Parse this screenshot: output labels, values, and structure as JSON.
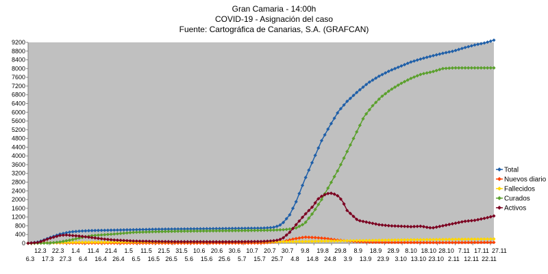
{
  "chart_data": {
    "type": "line",
    "title": "Gran Camaria - 14:00h",
    "subtitle": "COVID-19 - Asignación del caso",
    "source": "Fuente: Cartográfica de Canarias, S.A. (GRAFCAN)",
    "xlabel": "",
    "ylabel": "",
    "ylim": [
      0,
      9200
    ],
    "yticks": [
      0,
      400,
      800,
      1200,
      1600,
      2000,
      2400,
      2800,
      3200,
      3600,
      4000,
      4400,
      4800,
      5200,
      5600,
      6000,
      6400,
      6800,
      7200,
      7600,
      8000,
      8400,
      8800,
      9200
    ],
    "xtick_labels_upper": [
      "12.3",
      "22.3",
      "1.4",
      "11.4",
      "21.4",
      "1.5",
      "11.5",
      "21.5",
      "31.5",
      "10.6",
      "20.6",
      "30.6",
      "10.7",
      "20.7",
      "30.7",
      "9.8",
      "19.8",
      "29.8",
      "8.9",
      "18.9",
      "28.9",
      "8.10",
      "18.10",
      "28.10",
      "7.11",
      "17.11",
      "27.11"
    ],
    "xtick_labels_lower": [
      "6.3",
      "17.3",
      "27.3",
      "6.4",
      "16.4",
      "26.4",
      "6.5",
      "16.5",
      "26.5",
      "5.6",
      "15.6",
      "25.6",
      "5.7",
      "15.7",
      "25.7",
      "4.8",
      "14.8",
      "24.8",
      "3.9",
      "13.9",
      "23.9",
      "3.10",
      "13.10",
      "23.10",
      "2.11",
      "12.11",
      "22.11"
    ],
    "grid": false,
    "legend_position": "right",
    "plot_background": "#c0c0c0",
    "series": [
      {
        "name": "Total",
        "color": "#1f5fa8",
        "points": [
          [
            0,
            0
          ],
          [
            5,
            60
          ],
          [
            10,
            250
          ],
          [
            15,
            420
          ],
          [
            20,
            520
          ],
          [
            25,
            560
          ],
          [
            30,
            580
          ],
          [
            40,
            600
          ],
          [
            50,
            620
          ],
          [
            60,
            640
          ],
          [
            70,
            650
          ],
          [
            80,
            660
          ],
          [
            90,
            670
          ],
          [
            100,
            680
          ],
          [
            110,
            690
          ],
          [
            115,
            720
          ],
          [
            118,
            800
          ],
          [
            120,
            950
          ],
          [
            123,
            1300
          ],
          [
            126,
            1900
          ],
          [
            130,
            2900
          ],
          [
            134,
            3800
          ],
          [
            138,
            4700
          ],
          [
            142,
            5400
          ],
          [
            146,
            6050
          ],
          [
            150,
            6500
          ],
          [
            155,
            6950
          ],
          [
            160,
            7350
          ],
          [
            165,
            7650
          ],
          [
            170,
            7900
          ],
          [
            175,
            8100
          ],
          [
            180,
            8300
          ],
          [
            185,
            8450
          ],
          [
            190,
            8580
          ],
          [
            195,
            8700
          ],
          [
            200,
            8800
          ],
          [
            205,
            8950
          ],
          [
            210,
            9080
          ],
          [
            215,
            9180
          ],
          [
            219,
            9300
          ]
        ]
      },
      {
        "name": "Nuevos diario",
        "color": "#ff4000",
        "points": [
          [
            0,
            0
          ],
          [
            10,
            20
          ],
          [
            20,
            10
          ],
          [
            40,
            5
          ],
          [
            80,
            5
          ],
          [
            110,
            10
          ],
          [
            120,
            80
          ],
          [
            125,
            200
          ],
          [
            130,
            280
          ],
          [
            135,
            260
          ],
          [
            140,
            220
          ],
          [
            145,
            150
          ],
          [
            150,
            110
          ],
          [
            155,
            70
          ],
          [
            160,
            50
          ],
          [
            170,
            40
          ],
          [
            180,
            35
          ],
          [
            190,
            30
          ],
          [
            200,
            30
          ],
          [
            210,
            35
          ],
          [
            219,
            40
          ]
        ]
      },
      {
        "name": "Fallecidos",
        "color": "#ffd700",
        "points": [
          [
            0,
            0
          ],
          [
            10,
            15
          ],
          [
            20,
            40
          ],
          [
            40,
            50
          ],
          [
            80,
            60
          ],
          [
            110,
            65
          ],
          [
            120,
            70
          ],
          [
            130,
            80
          ],
          [
            140,
            100
          ],
          [
            160,
            130
          ],
          [
            180,
            160
          ],
          [
            200,
            180
          ],
          [
            219,
            195
          ]
        ]
      },
      {
        "name": "Curados",
        "color": "#5aa02c",
        "points": [
          [
            0,
            0
          ],
          [
            10,
            10
          ],
          [
            15,
            60
          ],
          [
            20,
            150
          ],
          [
            25,
            260
          ],
          [
            30,
            350
          ],
          [
            40,
            420
          ],
          [
            50,
            500
          ],
          [
            60,
            530
          ],
          [
            70,
            550
          ],
          [
            80,
            560
          ],
          [
            90,
            570
          ],
          [
            100,
            580
          ],
          [
            110,
            590
          ],
          [
            115,
            600
          ],
          [
            120,
            620
          ],
          [
            123,
            650
          ],
          [
            126,
            700
          ],
          [
            130,
            900
          ],
          [
            134,
            1400
          ],
          [
            138,
            2000
          ],
          [
            142,
            2700
          ],
          [
            146,
            3400
          ],
          [
            150,
            4200
          ],
          [
            154,
            5000
          ],
          [
            158,
            5800
          ],
          [
            162,
            6300
          ],
          [
            166,
            6700
          ],
          [
            170,
            7000
          ],
          [
            175,
            7300
          ],
          [
            180,
            7550
          ],
          [
            185,
            7750
          ],
          [
            190,
            7850
          ],
          [
            195,
            8000
          ],
          [
            200,
            8030
          ],
          [
            205,
            8030
          ],
          [
            210,
            8030
          ],
          [
            215,
            8030
          ],
          [
            219,
            8030
          ]
        ]
      },
      {
        "name": "Activos",
        "color": "#7b0020",
        "points": [
          [
            0,
            0
          ],
          [
            5,
            40
          ],
          [
            10,
            220
          ],
          [
            15,
            360
          ],
          [
            18,
            380
          ],
          [
            20,
            360
          ],
          [
            25,
            320
          ],
          [
            30,
            260
          ],
          [
            35,
            200
          ],
          [
            40,
            150
          ],
          [
            50,
            100
          ],
          [
            60,
            80
          ],
          [
            70,
            70
          ],
          [
            80,
            70
          ],
          [
            90,
            65
          ],
          [
            100,
            70
          ],
          [
            110,
            80
          ],
          [
            115,
            110
          ],
          [
            118,
            150
          ],
          [
            120,
            250
          ],
          [
            123,
            500
          ],
          [
            126,
            850
          ],
          [
            130,
            1300
          ],
          [
            134,
            1700
          ],
          [
            136,
            2000
          ],
          [
            138,
            2150
          ],
          [
            140,
            2250
          ],
          [
            142,
            2300
          ],
          [
            144,
            2250
          ],
          [
            146,
            2150
          ],
          [
            148,
            1900
          ],
          [
            150,
            1500
          ],
          [
            155,
            1050
          ],
          [
            160,
            950
          ],
          [
            165,
            850
          ],
          [
            170,
            800
          ],
          [
            175,
            780
          ],
          [
            180,
            760
          ],
          [
            185,
            780
          ],
          [
            188,
            720
          ],
          [
            190,
            700
          ],
          [
            195,
            800
          ],
          [
            200,
            900
          ],
          [
            205,
            1000
          ],
          [
            210,
            1050
          ],
          [
            215,
            1150
          ],
          [
            219,
            1250
          ]
        ]
      }
    ]
  }
}
